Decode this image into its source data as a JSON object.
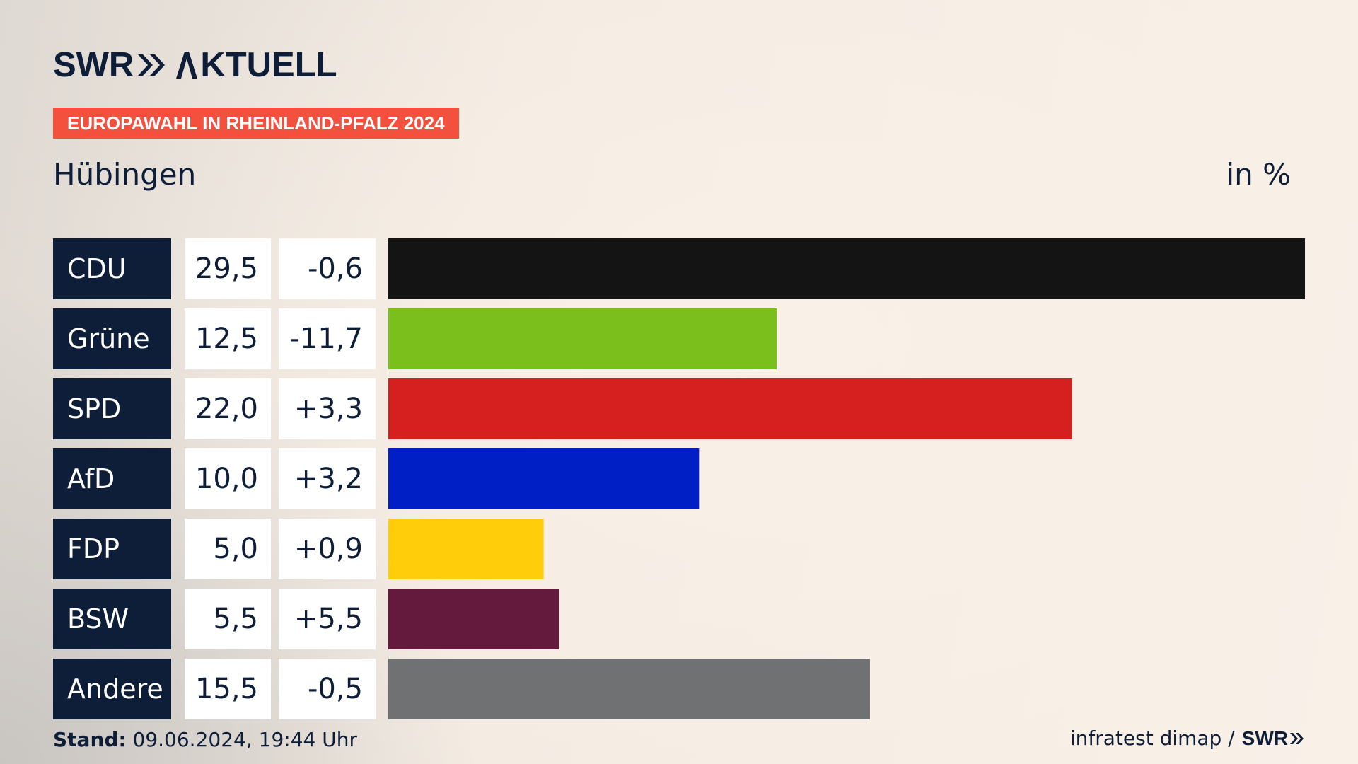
{
  "header": {
    "logo_swr": "SWR",
    "logo_aktuell": "KTUELL",
    "badge": "EUROPAWAHL IN RHEINLAND-PFALZ 2024",
    "region": "Hübingen",
    "unit": "in %"
  },
  "footer": {
    "stand_label": "Stand:",
    "stand_value": " 09.06.2024, 19:44 Uhr",
    "source": "infratest dimap /",
    "source_logo": "SWR"
  },
  "colors": {
    "navy": "#0f1e38",
    "badge": "#f4503e"
  },
  "chart_data": {
    "type": "bar",
    "orientation": "horizontal",
    "title": "Europawahl in Rheinland-Pfalz 2024 – Hübingen",
    "unit": "in %",
    "xlim": [
      0,
      29.5
    ],
    "categories": [
      "CDU",
      "Grüne",
      "SPD",
      "AfD",
      "FDP",
      "BSW",
      "Andere"
    ],
    "values": [
      29.5,
      12.5,
      22.0,
      10.0,
      5.0,
      5.5,
      15.5
    ],
    "values_label": [
      "29,5",
      "12,5",
      "22,0",
      "10,0",
      "5,0",
      "5,5",
      "15,5"
    ],
    "diff_label": [
      "-0,6",
      "-11,7",
      "+3,3",
      "+3,2",
      "+0,9",
      "+5,5",
      "-0,5"
    ],
    "colors": [
      "#141414",
      "#7abf1c",
      "#d61f1f",
      "#0020c6",
      "#ffcd0a",
      "#641a3c",
      "#707173"
    ]
  }
}
